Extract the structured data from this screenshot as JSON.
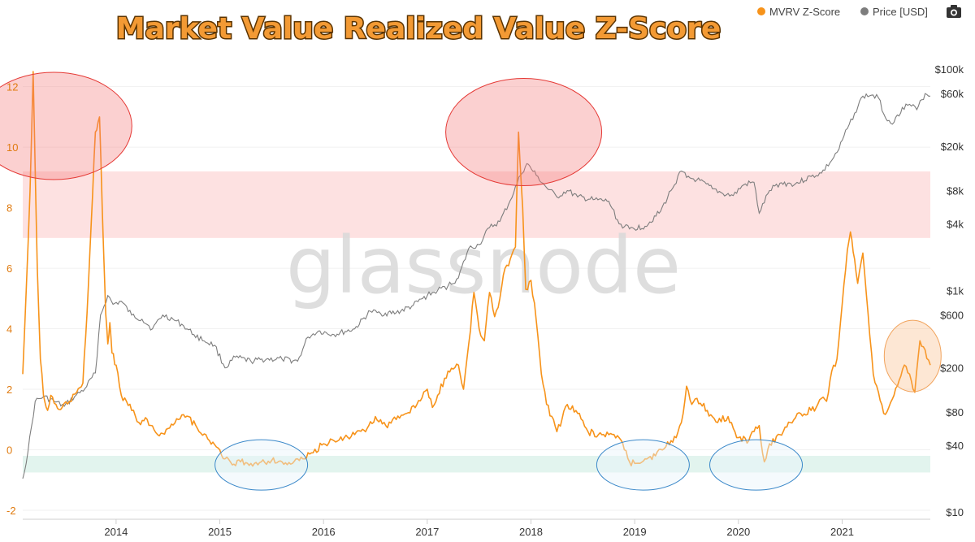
{
  "colors": {
    "mvrv": "#f7931a",
    "price": "#7d7d7d",
    "title_fill": "#f39a34",
    "title_stroke": "#5a3300",
    "red_band": "#fde1e1",
    "green_band": "#e2f4ee",
    "red_circle": "#e53935",
    "blue_circle": "#3a88c9",
    "orange_circle": "#f1a35c",
    "left_axis": "#e07b10",
    "right_axis": "#333333"
  },
  "watermark": "glassnode",
  "legend": {
    "mvrv_label": "MVRV Z-Score",
    "price_label": "Price [USD]",
    "camera_icon": "camera-icon"
  },
  "chart_data": {
    "type": "line",
    "title": "Market Value Realized Value Z-Score",
    "x_tick_labels": [
      "2014",
      "2015",
      "2016",
      "2017",
      "2018",
      "2019",
      "2020",
      "2021"
    ],
    "xlim": [
      2013.1,
      2021.85
    ],
    "left_axis": {
      "label": "MVRV Z-Score",
      "ylim": [
        -2,
        12.5
      ],
      "ticks": [
        -2,
        0,
        2,
        4,
        6,
        8,
        10,
        12
      ],
      "tick_labels": [
        "-2",
        "0",
        "2",
        "4",
        "6",
        "8",
        "10",
        "12"
      ]
    },
    "right_axis": {
      "label": "Price [USD]",
      "scale": "log",
      "ticks": [
        10,
        40,
        80,
        200,
        600,
        1000,
        4000,
        8000,
        20000,
        60000,
        100000
      ],
      "tick_labels": [
        "$10",
        "$40",
        "$80",
        "$200",
        "$600",
        "$1k",
        "$4k",
        "$8k",
        "$20k",
        "$60k",
        "$100k"
      ]
    },
    "bands": [
      {
        "name": "overvalued-zone",
        "y0": 7,
        "y1": 9.2
      },
      {
        "name": "undervalued-zone",
        "y0": -0.75,
        "y1": -0.2
      }
    ],
    "series": [
      {
        "name": "MVRV Z-Score",
        "x": [
          2013.1,
          2013.17,
          2013.2,
          2013.24,
          2013.27,
          2013.3,
          2013.34,
          2013.37,
          2013.42,
          2013.48,
          2013.55,
          2013.62,
          2013.68,
          2013.72,
          2013.76,
          2013.8,
          2013.84,
          2013.88,
          2013.9,
          2013.92,
          2013.94,
          2013.96,
          2014.0,
          2014.05,
          2014.1,
          2014.15,
          2014.22,
          2014.3,
          2014.4,
          2014.5,
          2014.6,
          2014.7,
          2014.8,
          2014.9,
          2015.0,
          2015.05,
          2015.12,
          2015.2,
          2015.3,
          2015.4,
          2015.5,
          2015.6,
          2015.7,
          2015.8,
          2015.9,
          2016.0,
          2016.1,
          2016.2,
          2016.3,
          2016.42,
          2016.5,
          2016.6,
          2016.7,
          2016.8,
          2016.9,
          2017.0,
          2017.05,
          2017.1,
          2017.2,
          2017.3,
          2017.35,
          2017.4,
          2017.45,
          2017.5,
          2017.55,
          2017.6,
          2017.65,
          2017.7,
          2017.75,
          2017.8,
          2017.85,
          2017.88,
          2017.92,
          2017.95,
          2018.0,
          2018.05,
          2018.1,
          2018.15,
          2018.25,
          2018.35,
          2018.45,
          2018.55,
          2018.65,
          2018.75,
          2018.85,
          2018.9,
          2018.95,
          2019.0,
          2019.1,
          2019.2,
          2019.3,
          2019.35,
          2019.4,
          2019.45,
          2019.5,
          2019.55,
          2019.6,
          2019.7,
          2019.8,
          2019.9,
          2020.0,
          2020.1,
          2020.15,
          2020.2,
          2020.25,
          2020.3,
          2020.4,
          2020.5,
          2020.6,
          2020.7,
          2020.75,
          2020.8,
          2020.85,
          2020.9,
          2020.95,
          2021.0,
          2021.05,
          2021.08,
          2021.12,
          2021.15,
          2021.2,
          2021.25,
          2021.3,
          2021.35,
          2021.4,
          2021.45,
          2021.5,
          2021.55,
          2021.6,
          2021.65,
          2021.7,
          2021.75,
          2021.8,
          2021.85
        ],
        "values": [
          2.5,
          8.5,
          12.5,
          6.0,
          3.0,
          1.8,
          1.3,
          1.8,
          1.5,
          1.4,
          1.6,
          1.9,
          2.2,
          4.5,
          7.5,
          10.5,
          11.0,
          6.5,
          4.5,
          3.5,
          4.2,
          3.2,
          2.8,
          1.8,
          1.6,
          1.3,
          0.9,
          1.0,
          0.5,
          0.7,
          1.0,
          1.1,
          0.6,
          0.3,
          0.0,
          -0.3,
          -0.5,
          -0.4,
          -0.45,
          -0.4,
          -0.35,
          -0.4,
          -0.45,
          -0.3,
          -0.1,
          0.2,
          0.3,
          0.4,
          0.5,
          0.7,
          1.1,
          0.8,
          1.0,
          1.2,
          1.5,
          2.0,
          1.4,
          1.8,
          2.6,
          2.8,
          2.0,
          3.5,
          5.2,
          4.0,
          3.6,
          5.2,
          4.4,
          5.0,
          6.0,
          6.3,
          6.7,
          10.5,
          8.0,
          5.3,
          5.6,
          4.3,
          2.5,
          1.5,
          0.6,
          1.5,
          1.2,
          0.6,
          0.5,
          0.5,
          0.4,
          0.0,
          -0.4,
          -0.45,
          -0.3,
          -0.2,
          0.1,
          0.3,
          0.4,
          0.9,
          2.1,
          1.5,
          1.7,
          1.3,
          0.9,
          1.1,
          0.4,
          0.3,
          0.6,
          0.8,
          -0.4,
          0.2,
          0.5,
          0.9,
          1.2,
          1.3,
          1.4,
          1.7,
          1.6,
          2.6,
          3.0,
          4.8,
          6.6,
          7.2,
          6.3,
          5.5,
          6.5,
          4.5,
          2.5,
          1.9,
          1.2,
          1.4,
          1.8,
          2.3,
          2.8,
          2.5,
          1.9,
          3.6,
          3.3,
          2.8
        ]
      },
      {
        "name": "Price [USD]",
        "x": [
          2013.1,
          2013.15,
          2013.22,
          2013.3,
          2013.4,
          2013.5,
          2013.6,
          2013.7,
          2013.8,
          2013.85,
          2013.92,
          2013.97,
          2014.05,
          2014.15,
          2014.25,
          2014.35,
          2014.45,
          2014.55,
          2014.65,
          2014.75,
          2014.85,
          2014.95,
          2015.05,
          2015.15,
          2015.3,
          2015.45,
          2015.6,
          2015.75,
          2015.85,
          2015.95,
          2016.1,
          2016.3,
          2016.45,
          2016.55,
          2016.7,
          2016.85,
          2017.0,
          2017.1,
          2017.2,
          2017.3,
          2017.4,
          2017.5,
          2017.6,
          2017.7,
          2017.8,
          2017.9,
          2017.96,
          2018.05,
          2018.15,
          2018.25,
          2018.35,
          2018.45,
          2018.6,
          2018.75,
          2018.85,
          2018.95,
          2019.1,
          2019.25,
          2019.35,
          2019.45,
          2019.5,
          2019.6,
          2019.75,
          2019.85,
          2019.95,
          2020.05,
          2020.15,
          2020.2,
          2020.3,
          2020.4,
          2020.55,
          2020.7,
          2020.8,
          2020.9,
          2020.97,
          2021.05,
          2021.12,
          2021.2,
          2021.28,
          2021.35,
          2021.42,
          2021.5,
          2021.58,
          2021.65,
          2021.72,
          2021.8,
          2021.85
        ],
        "values": [
          20,
          35,
          100,
          110,
          100,
          90,
          110,
          130,
          180,
          600,
          900,
          750,
          800,
          600,
          550,
          450,
          600,
          550,
          480,
          400,
          350,
          320,
          200,
          250,
          230,
          240,
          240,
          230,
          380,
          430,
          400,
          450,
          650,
          620,
          630,
          720,
          900,
          1000,
          1100,
          1300,
          2400,
          2600,
          3700,
          4200,
          6500,
          11000,
          14000,
          11000,
          8500,
          7000,
          8000,
          7000,
          6600,
          6400,
          4000,
          3600,
          3800,
          5200,
          8000,
          12000,
          10500,
          10000,
          8300,
          7500,
          7200,
          9000,
          9500,
          5000,
          8000,
          9300,
          9200,
          10700,
          11500,
          15000,
          19000,
          29000,
          40000,
          57000,
          58000,
          55000,
          36000,
          33000,
          45000,
          48000,
          43000,
          60000,
          57000
        ]
      }
    ],
    "annotations": [
      {
        "name": "peak-2013-circle",
        "kind": "top",
        "x": 2013.4,
        "y": 10.7
      },
      {
        "name": "peak-2017-circle",
        "kind": "top",
        "x": 2017.93,
        "y": 10.5
      },
      {
        "name": "bottom-2015-circle",
        "kind": "bottom",
        "x": 2015.4,
        "y": -0.5
      },
      {
        "name": "bottom-2019-circle",
        "kind": "bottom",
        "x": 2019.08,
        "y": -0.5
      },
      {
        "name": "bottom-2020-circle",
        "kind": "bottom",
        "x": 2020.17,
        "y": -0.5
      },
      {
        "name": "current-2021-circle",
        "kind": "current",
        "x": 2021.68,
        "y": 3.1
      }
    ]
  }
}
